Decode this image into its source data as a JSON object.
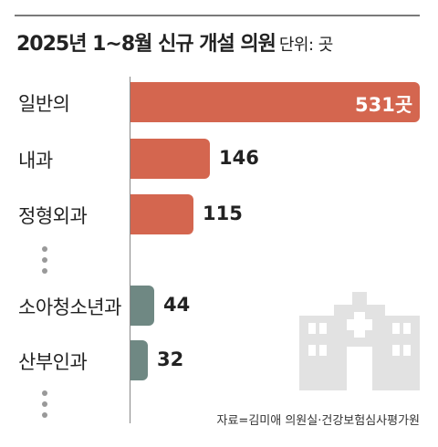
{
  "chart_data": {
    "type": "bar",
    "orientation": "horizontal",
    "title": "2025년 1~8월 신규 개설 의원",
    "unit_label": "단위: 곳",
    "categories": [
      "일반의",
      "내과",
      "정형외과",
      "소아청소년과",
      "산부인과"
    ],
    "values": [
      531,
      146,
      115,
      44,
      32
    ],
    "value_labels": [
      "531곳",
      "146",
      "115",
      "44",
      "32"
    ],
    "xlim": [
      0,
      531
    ],
    "grid": false,
    "colors": {
      "primary": "#d4664f",
      "secondary": "#6f8883"
    }
  },
  "source": "자료=김미애 의원실·건강보험심사평가원",
  "icons": {
    "illustration": "hospital-building-icon"
  }
}
